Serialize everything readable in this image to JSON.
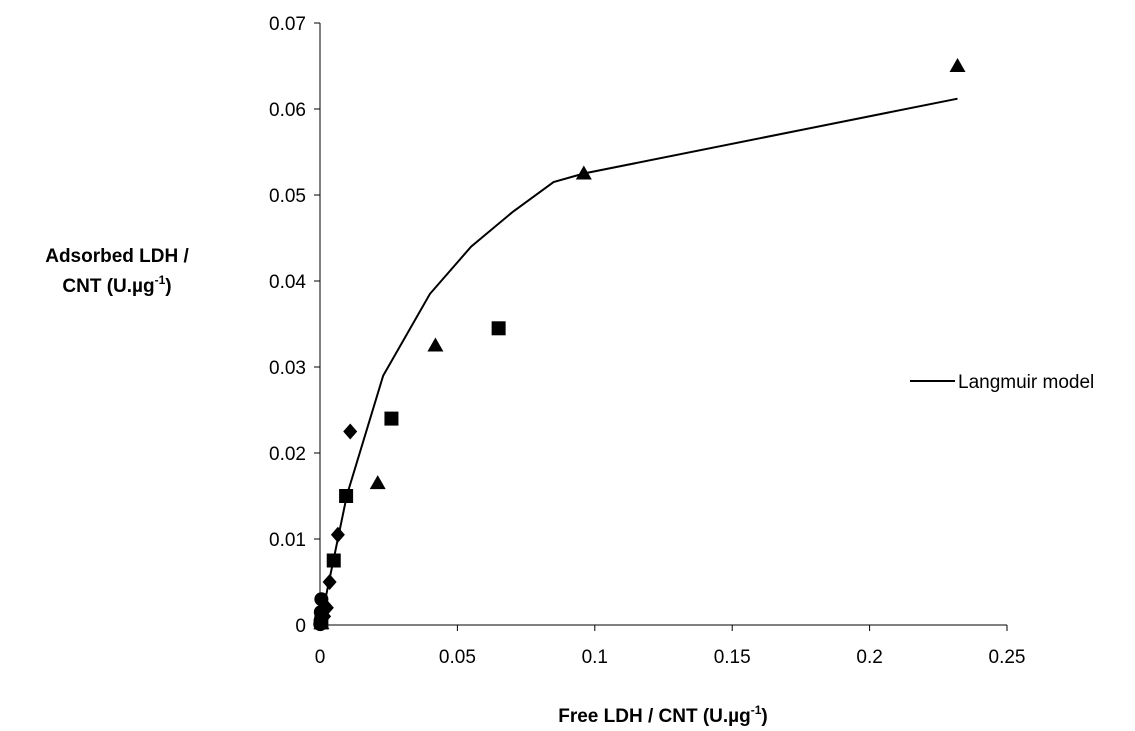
{
  "chart_data": {
    "type": "scatter",
    "xlabel": "Free LDH / CNT (U.µg",
    "xlabel_sup": "-1",
    "xlabel_end": ")",
    "ylabel_lines": [
      "Adsorbed LDH /",
      "CNT (U.µg"
    ],
    "ylabel_sup": "-1",
    "ylabel_end": ")",
    "xlim": [
      0,
      0.25
    ],
    "ylim": [
      0,
      0.07
    ],
    "xticks": [
      0,
      0.05,
      0.1,
      0.15,
      0.2,
      0.25
    ],
    "yticks": [
      0,
      0.01,
      0.02,
      0.03,
      0.04,
      0.05,
      0.06,
      0.07
    ],
    "legend": "right",
    "series": [
      {
        "marker": "circle",
        "color": "#000000",
        "x": [
          0.0005,
          0.0003,
          0.0002,
          0.0001
        ],
        "values": [
          0.003,
          0.0015,
          0.0005,
          0.0001
        ]
      },
      {
        "marker": "diamond",
        "color": "#000000",
        "x": [
          0.0015,
          0.0025,
          0.0035,
          0.0065,
          0.011
        ],
        "values": [
          0.001,
          0.002,
          0.005,
          0.0105,
          0.0225
        ]
      },
      {
        "marker": "square",
        "color": "#000000",
        "x": [
          0.0005,
          0.005,
          0.0095,
          0.026,
          0.065
        ],
        "values": [
          0.0003,
          0.0075,
          0.015,
          0.024,
          0.0345
        ]
      },
      {
        "marker": "triangle",
        "color": "#000000",
        "x": [
          0.0005,
          0.021,
          0.042,
          0.096,
          0.232
        ],
        "values": [
          0.0002,
          0.0165,
          0.0325,
          0.0525,
          0.065
        ]
      },
      {
        "name": "Langmuir model",
        "marker": "line",
        "color": "#000000",
        "x": [
          0,
          0.0098,
          0.023,
          0.04,
          0.055,
          0.07,
          0.085,
          0.096,
          0.232
        ],
        "values": [
          0,
          0.0151,
          0.029,
          0.0385,
          0.044,
          0.048,
          0.0515,
          0.0525,
          0.0612
        ]
      }
    ]
  }
}
